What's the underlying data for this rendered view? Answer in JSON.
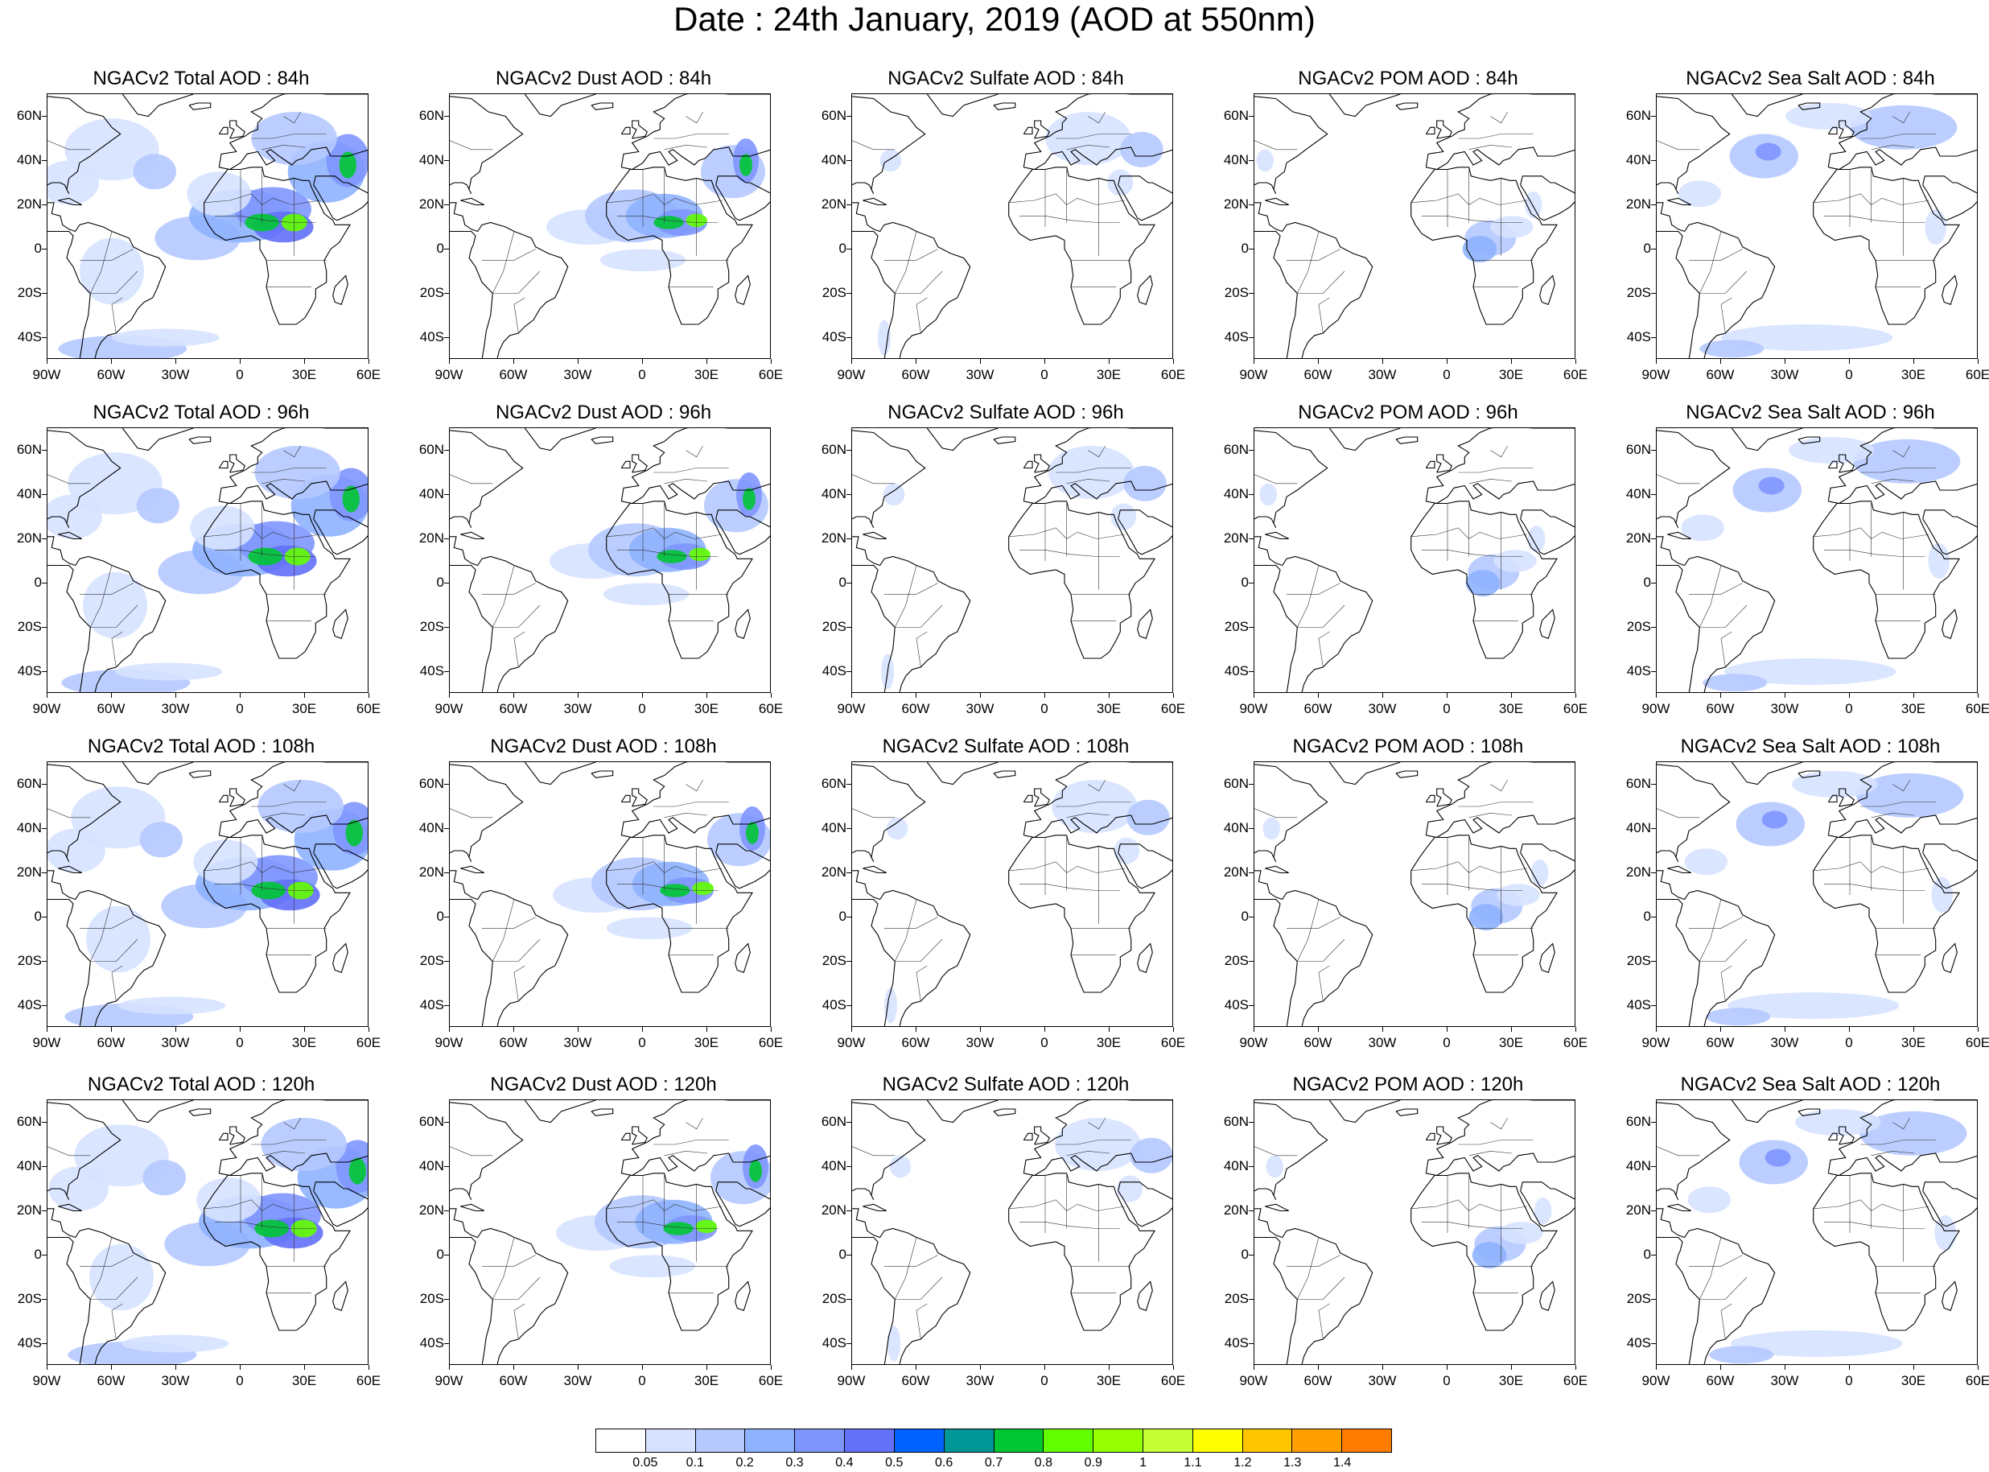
{
  "title": "Date : 24th January, 2019 (AOD at 550nm)",
  "axes": {
    "lat_labels": [
      "60N",
      "40N",
      "20N",
      "0",
      "20S",
      "40S"
    ],
    "lat_values": [
      60,
      40,
      20,
      0,
      -20,
      -40
    ],
    "lon_labels": [
      "90W",
      "60W",
      "30W",
      "0",
      "30E",
      "60E"
    ],
    "lon_values": [
      -90,
      -60,
      -30,
      0,
      30,
      60
    ],
    "lat_range": [
      -50,
      70
    ],
    "lon_range": [
      -90,
      60
    ]
  },
  "rows": [
    {
      "forecast_hour": "84h",
      "panels": [
        {
          "title": "NGACv2 Total AOD : 84h",
          "species": "total"
        },
        {
          "title": "NGACv2 Dust AOD : 84h",
          "species": "dust"
        },
        {
          "title": "NGACv2 Sulfate AOD : 84h",
          "species": "sulfate"
        },
        {
          "title": "NGACv2 POM AOD : 84h",
          "species": "pom"
        },
        {
          "title": "NGACv2 Sea Salt AOD : 84h",
          "species": "seasalt"
        }
      ]
    },
    {
      "forecast_hour": "96h",
      "panels": [
        {
          "title": "NGACv2 Total AOD : 96h",
          "species": "total"
        },
        {
          "title": "NGACv2 Dust AOD : 96h",
          "species": "dust"
        },
        {
          "title": "NGACv2 Sulfate AOD : 96h",
          "species": "sulfate"
        },
        {
          "title": "NGACv2 POM AOD : 96h",
          "species": "pom"
        },
        {
          "title": "NGACv2 Sea Salt AOD : 96h",
          "species": "seasalt"
        }
      ]
    },
    {
      "forecast_hour": "108h",
      "panels": [
        {
          "title": "NGACv2 Total AOD : 108h",
          "species": "total"
        },
        {
          "title": "NGACv2 Dust AOD : 108h",
          "species": "dust"
        },
        {
          "title": "NGACv2 Sulfate AOD : 108h",
          "species": "sulfate"
        },
        {
          "title": "NGACv2 POM AOD : 108h",
          "species": "pom"
        },
        {
          "title": "NGACv2 Sea Salt AOD : 108h",
          "species": "seasalt"
        }
      ]
    },
    {
      "forecast_hour": "120h",
      "panels": [
        {
          "title": "NGACv2 Total AOD : 120h",
          "species": "total"
        },
        {
          "title": "NGACv2 Dust AOD : 120h",
          "species": "dust"
        },
        {
          "title": "NGACv2 Sulfate AOD : 120h",
          "species": "sulfate"
        },
        {
          "title": "NGACv2 POM AOD : 120h",
          "species": "pom"
        },
        {
          "title": "NGACv2 Sea Salt  AOD : 120h",
          "species": "seasalt"
        }
      ]
    }
  ],
  "colorbar": {
    "labels": [
      "0.05",
      "0.1",
      "0.2",
      "0.3",
      "0.4",
      "0.5",
      "0.6",
      "0.7",
      "0.8",
      "0.9",
      "1",
      "1.1",
      "1.2",
      "1.3",
      "1.4"
    ],
    "colors": [
      "#ffffff",
      "#d6e2ff",
      "#b5c9ff",
      "#8eb2ff",
      "#7f96ff",
      "#6370f8",
      "#0063ff",
      "#009696",
      "#00c633",
      "#63ff00",
      "#96ff00",
      "#c6ff33",
      "#ffff00",
      "#ffc600",
      "#ffa000",
      "#ff7c00",
      "#ff1900"
    ]
  }
}
